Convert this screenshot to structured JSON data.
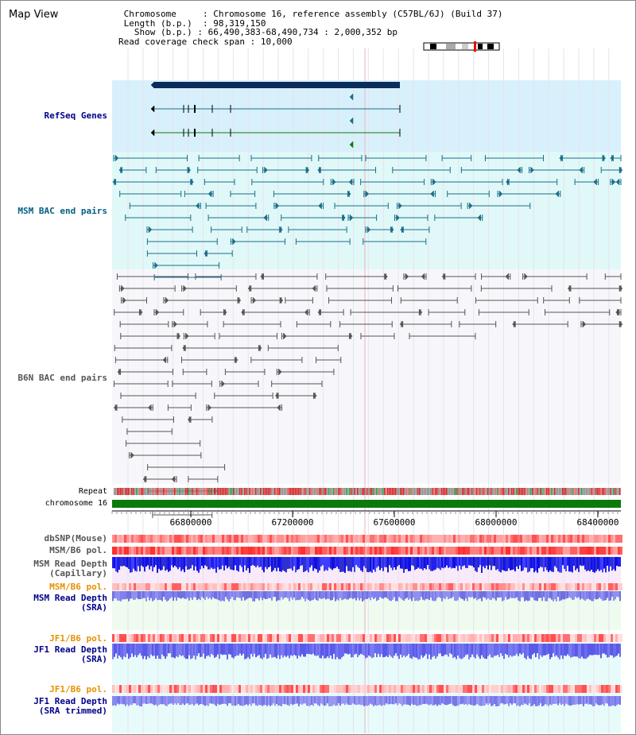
{
  "view": {
    "title": "Map View",
    "info": {
      "chromosome_label": "Chromosome",
      "chromosome_value": "Chromosome 16, reference assembly (C57BL/6J) (Build 37)",
      "length_label": "Length (b.p.)",
      "length_value": "98,319,150",
      "show_label": "Show (b.p.)",
      "show_value": "66,490,383-68,490,734 : 2,000,352 bp",
      "coverage_label": "Read coverage check span",
      "coverage_value": "10,000"
    }
  },
  "ruler": {
    "start": 66490383,
    "end": 68490734,
    "ticks": [
      "66800000",
      "67200000",
      "67600000",
      "68000000",
      "68400000"
    ]
  },
  "tracks": {
    "refseq": {
      "label": "RefSeq Genes"
    },
    "msm_bac": {
      "label": "MSM BAC end pairs"
    },
    "b6n_bac": {
      "label": "B6N BAC end pairs"
    },
    "repeat": {
      "label": "Repeat"
    },
    "chromosome": {
      "label": "chromosome 16"
    },
    "dbsnp": {
      "label": "dbSNP(Mouse)"
    },
    "msm_b6_pol": {
      "label": "MSM/B6 pol."
    },
    "msm_depth_cap": {
      "label1": "MSM Read Depth",
      "label2": "(Capillary)"
    },
    "msm_b6_pol2": {
      "label": "MSM/B6 pol."
    },
    "msm_depth_sra": {
      "label1": "MSM Read Depth",
      "label2": "(SRA)"
    },
    "jf1_b6_pol": {
      "label": "JF1/B6 pol."
    },
    "jf1_depth_sra": {
      "label1": "JF1 Read Depth",
      "label2": "(SRA)"
    },
    "jf1_b6_pol2": {
      "label": "JF1/B6 pol."
    },
    "jf1_depth_trim": {
      "label1": "JF1 Read Depth",
      "label2": "(SRA trimmed)"
    }
  },
  "colors": {
    "refseq_bg": "#d8f0fb",
    "msm_bac_bg": "#e0f8f8",
    "msm_bac_color": "#1a6f8a",
    "b6n_color": "#555555",
    "gene_dark": "#0b2c5c",
    "chrom_green": "#0a7a0a",
    "depth_blue": "#2020e0",
    "label_blue": "#00008b",
    "label_orange": "#e89000",
    "label_teal": "#006080"
  }
}
